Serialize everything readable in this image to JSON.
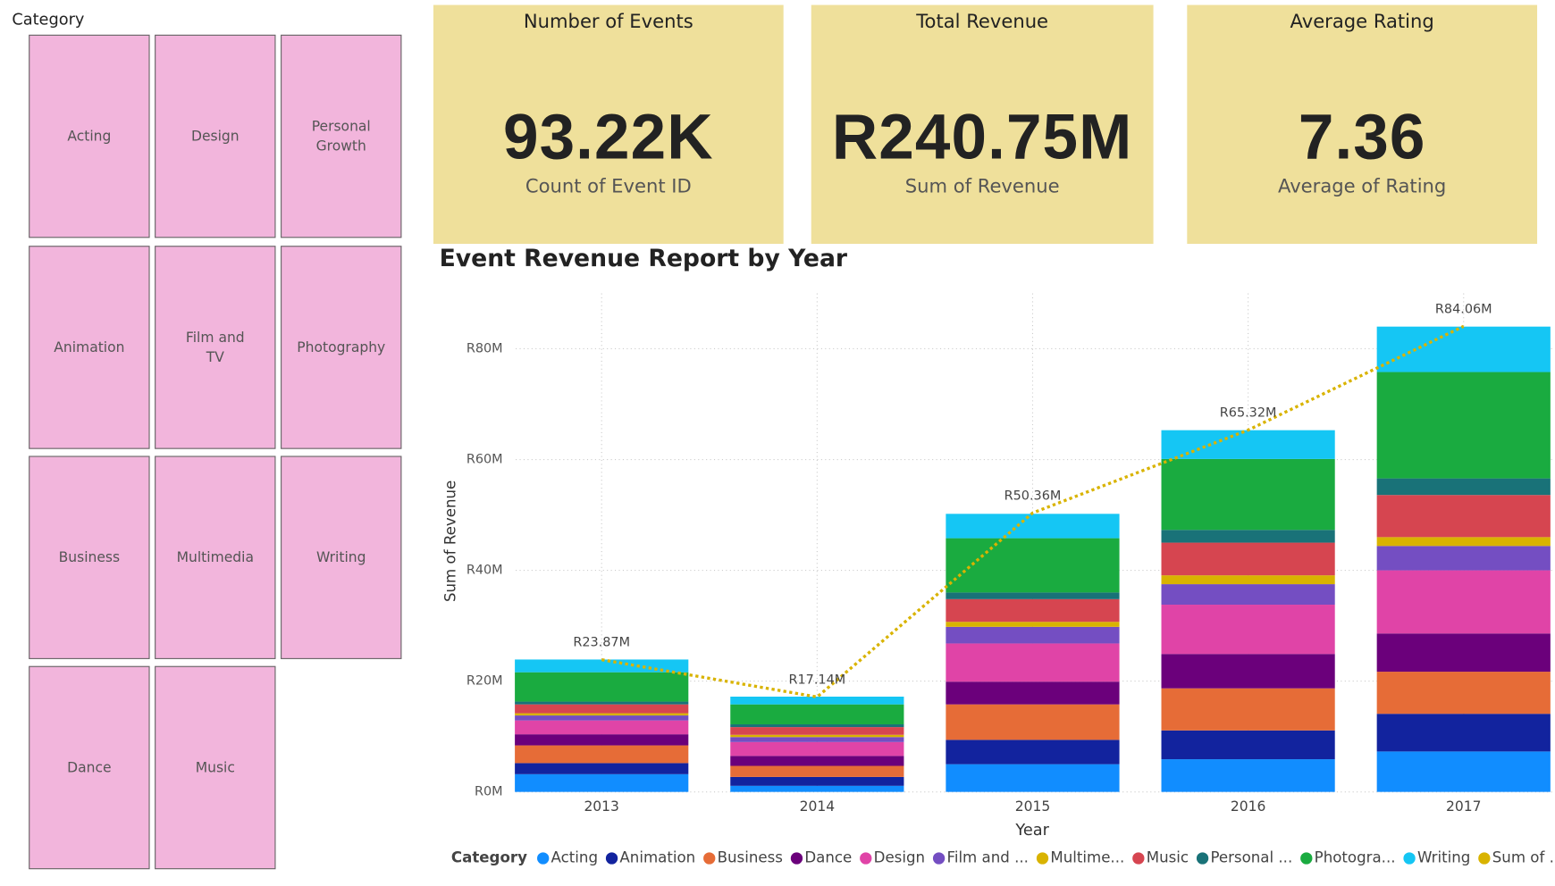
{
  "slicer": {
    "title": "Category",
    "items": [
      "Acting",
      "Design",
      "Personal Growth",
      "Animation",
      "Film and TV",
      "Photography",
      "Business",
      "Multimedia",
      "Writing",
      "Dance",
      "Music"
    ]
  },
  "cards": [
    {
      "title": "Number of Events",
      "value": "93.22K",
      "subtitle": "Count of Event ID"
    },
    {
      "title": "Total Revenue",
      "value": "R240.75M",
      "subtitle": "Sum of Revenue"
    },
    {
      "title": "Average Rating",
      "value": "7.36",
      "subtitle": "Average of Rating"
    }
  ],
  "chart_data": {
    "type": "bar",
    "stacked": true,
    "title": "Event Revenue Report by Year",
    "x_label": "Year",
    "y_label": "Sum of Revenue",
    "legend_title": "Category",
    "legend": "bottom-left",
    "grid": true,
    "categories": [
      "2013",
      "2014",
      "2015",
      "2016",
      "2017"
    ],
    "ylim": [
      0,
      90
    ],
    "yticks": [
      {
        "value": 0,
        "label": "R0M"
      },
      {
        "value": 20,
        "label": "R20M"
      },
      {
        "value": 40,
        "label": "R40M"
      },
      {
        "value": 60,
        "label": "R60M"
      },
      {
        "value": 80,
        "label": "R80M"
      }
    ],
    "series": [
      {
        "name": "Acting",
        "color": "#118DFF",
        "values": [
          3.2,
          1.1,
          5.0,
          5.9,
          7.3
        ]
      },
      {
        "name": "Animation",
        "color": "#12239E",
        "values": [
          2.0,
          1.6,
          4.4,
          5.2,
          6.8
        ]
      },
      {
        "name": "Business",
        "color": "#E66C37",
        "values": [
          3.2,
          2.0,
          6.4,
          7.6,
          7.6
        ]
      },
      {
        "name": "Dance",
        "color": "#6B007B",
        "values": [
          2.0,
          1.8,
          4.1,
          6.2,
          6.9
        ]
      },
      {
        "name": "Design",
        "color": "#E044A7",
        "values": [
          2.5,
          2.5,
          6.9,
          8.9,
          11.4
        ]
      },
      {
        "name": "Film and ...",
        "color": "#744EC2",
        "values": [
          0.9,
          0.9,
          3.0,
          3.7,
          4.4
        ]
      },
      {
        "name": "Multime...",
        "color": "#D9B300",
        "values": [
          0.4,
          0.4,
          0.9,
          1.6,
          1.6
        ]
      },
      {
        "name": "Music",
        "color": "#D64550",
        "values": [
          1.6,
          1.4,
          4.1,
          5.9,
          7.6
        ]
      },
      {
        "name": "Personal ...",
        "color": "#197278",
        "values": [
          0.5,
          0.5,
          1.2,
          2.3,
          3.0
        ]
      },
      {
        "name": "Photogra...",
        "color": "#1AAB40",
        "values": [
          5.3,
          3.6,
          9.8,
          12.8,
          19.2
        ]
      },
      {
        "name": "Writing",
        "color": "#15C6F4",
        "values": [
          2.3,
          1.4,
          4.4,
          5.2,
          8.2
        ]
      },
      {
        "name": "Sum of ...",
        "type": "line",
        "color": "#D9B300",
        "values": [
          23.87,
          17.14,
          50.36,
          65.32,
          84.06
        ],
        "value_labels": [
          "R23.87M",
          "R17.14M",
          "R50.36M",
          "R65.32M",
          "R84.06M"
        ]
      }
    ]
  }
}
